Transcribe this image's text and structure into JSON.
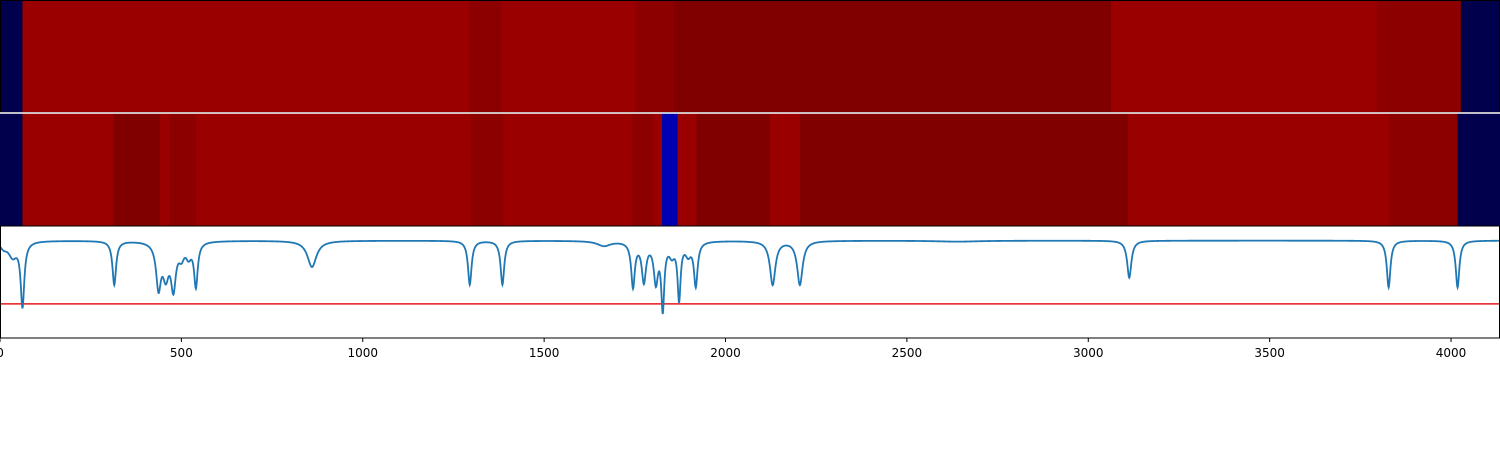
{
  "chart_data": [
    {
      "type": "heatmap",
      "name": "top-band",
      "colors": {
        "navy": "#00004c",
        "red": "#9a0000",
        "dark_red": "#8c0000",
        "darker_red": "#800000"
      },
      "segments": [
        {
          "from": 0,
          "to": 62,
          "color": "navy"
        },
        {
          "from": 62,
          "to": 1293,
          "color": "red"
        },
        {
          "from": 1293,
          "to": 1382,
          "color": "dark_red"
        },
        {
          "from": 1382,
          "to": 1752,
          "color": "red"
        },
        {
          "from": 1752,
          "to": 1857,
          "color": "dark_red"
        },
        {
          "from": 1857,
          "to": 3063,
          "color": "darker_red"
        },
        {
          "from": 3063,
          "to": 3795,
          "color": "red"
        },
        {
          "from": 3795,
          "to": 4027,
          "color": "dark_red"
        },
        {
          "from": 4027,
          "to": 4135,
          "color": "navy"
        }
      ]
    },
    {
      "type": "heatmap",
      "name": "bottom-band",
      "colors": {
        "navy": "#00004c",
        "blue": "#0000b0",
        "red": "#9a0000",
        "dark_red": "#8c0000",
        "darker_red": "#800000"
      },
      "segments": [
        {
          "from": 0,
          "to": 62,
          "color": "navy"
        },
        {
          "from": 62,
          "to": 313,
          "color": "red"
        },
        {
          "from": 313,
          "to": 441,
          "color": "darker_red"
        },
        {
          "from": 441,
          "to": 467,
          "color": "red"
        },
        {
          "from": 467,
          "to": 541,
          "color": "dark_red"
        },
        {
          "from": 541,
          "to": 1298,
          "color": "red"
        },
        {
          "from": 1298,
          "to": 1387,
          "color": "dark_red"
        },
        {
          "from": 1387,
          "to": 1742,
          "color": "red"
        },
        {
          "from": 1742,
          "to": 1802,
          "color": "dark_red"
        },
        {
          "from": 1802,
          "to": 1825,
          "color": "red"
        },
        {
          "from": 1825,
          "to": 1868,
          "color": "blue"
        },
        {
          "from": 1868,
          "to": 1920,
          "color": "red"
        },
        {
          "from": 1920,
          "to": 2122,
          "color": "darker_red"
        },
        {
          "from": 2122,
          "to": 2205,
          "color": "red"
        },
        {
          "from": 2205,
          "to": 3110,
          "color": "darker_red"
        },
        {
          "from": 3110,
          "to": 3830,
          "color": "red"
        },
        {
          "from": 3830,
          "to": 4018,
          "color": "dark_red"
        },
        {
          "from": 4018,
          "to": 4135,
          "color": "navy"
        }
      ]
    },
    {
      "type": "line",
      "name": "signal",
      "xlim": [
        0,
        4135
      ],
      "ylim": [
        -1.0,
        0.15
      ],
      "color": "#1f77b4",
      "threshold": {
        "y": -0.65,
        "color": "#e41a1c"
      },
      "baseline": 0.0,
      "dips": [
        {
          "x": 10,
          "depth": 0.06,
          "width": 12
        },
        {
          "x": 35,
          "depth": 0.15,
          "width": 14
        },
        {
          "x": 62,
          "depth": 0.66,
          "width": 6
        },
        {
          "x": 315,
          "depth": 0.45,
          "width": 6
        },
        {
          "x": 437,
          "depth": 0.45,
          "width": 8
        },
        {
          "x": 457,
          "depth": 0.32,
          "width": 10
        },
        {
          "x": 478,
          "depth": 0.45,
          "width": 8
        },
        {
          "x": 500,
          "depth": 0.13,
          "width": 9
        },
        {
          "x": 520,
          "depth": 0.13,
          "width": 9
        },
        {
          "x": 540,
          "depth": 0.45,
          "width": 6
        },
        {
          "x": 860,
          "depth": 0.27,
          "width": 15
        },
        {
          "x": 1295,
          "depth": 0.45,
          "width": 6
        },
        {
          "x": 1385,
          "depth": 0.45,
          "width": 6
        },
        {
          "x": 1665,
          "depth": 0.05,
          "width": 22
        },
        {
          "x": 1745,
          "depth": 0.46,
          "width": 6
        },
        {
          "x": 1775,
          "depth": 0.4,
          "width": 7
        },
        {
          "x": 1808,
          "depth": 0.4,
          "width": 7
        },
        {
          "x": 1827,
          "depth": 0.67,
          "width": 5
        },
        {
          "x": 1852,
          "depth": 0.12,
          "width": 9
        },
        {
          "x": 1872,
          "depth": 0.58,
          "width": 5
        },
        {
          "x": 1897,
          "depth": 0.12,
          "width": 9
        },
        {
          "x": 1918,
          "depth": 0.45,
          "width": 6
        },
        {
          "x": 2130,
          "depth": 0.45,
          "width": 9
        },
        {
          "x": 2205,
          "depth": 0.45,
          "width": 9
        },
        {
          "x": 2640,
          "depth": 0.01,
          "width": 70
        },
        {
          "x": 3113,
          "depth": 0.38,
          "width": 7
        },
        {
          "x": 3828,
          "depth": 0.48,
          "width": 6
        },
        {
          "x": 4018,
          "depth": 0.48,
          "width": 6
        }
      ],
      "xticks": [
        0,
        500,
        1000,
        1500,
        2000,
        2500,
        3000,
        3500,
        4000
      ]
    }
  ]
}
